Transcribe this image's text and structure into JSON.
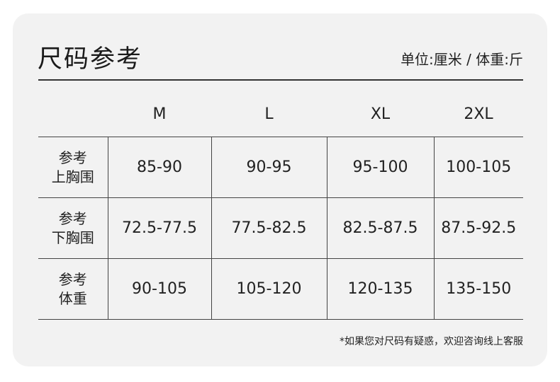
{
  "title": "尺码参考",
  "unit_note": "单位:厘米 / 体重:斤",
  "table": {
    "columns": [
      "",
      "M",
      "L",
      "XL",
      "2XL"
    ],
    "rows": [
      {
        "label": [
          "参考",
          "上胸围"
        ],
        "values": [
          "85-90",
          "90-95",
          "95-100",
          "100-105"
        ]
      },
      {
        "label": [
          "参考",
          "下胸围"
        ],
        "values": [
          "72.5-77.5",
          "77.5-82.5",
          "82.5-87.5",
          "87.5-92.5"
        ]
      },
      {
        "label": [
          "参考",
          "体重"
        ],
        "values": [
          "90-105",
          "105-120",
          "120-135",
          "135-150"
        ]
      }
    ]
  },
  "footer_note": "*如果您对尺码有疑惑，欢迎咨询线上客服"
}
